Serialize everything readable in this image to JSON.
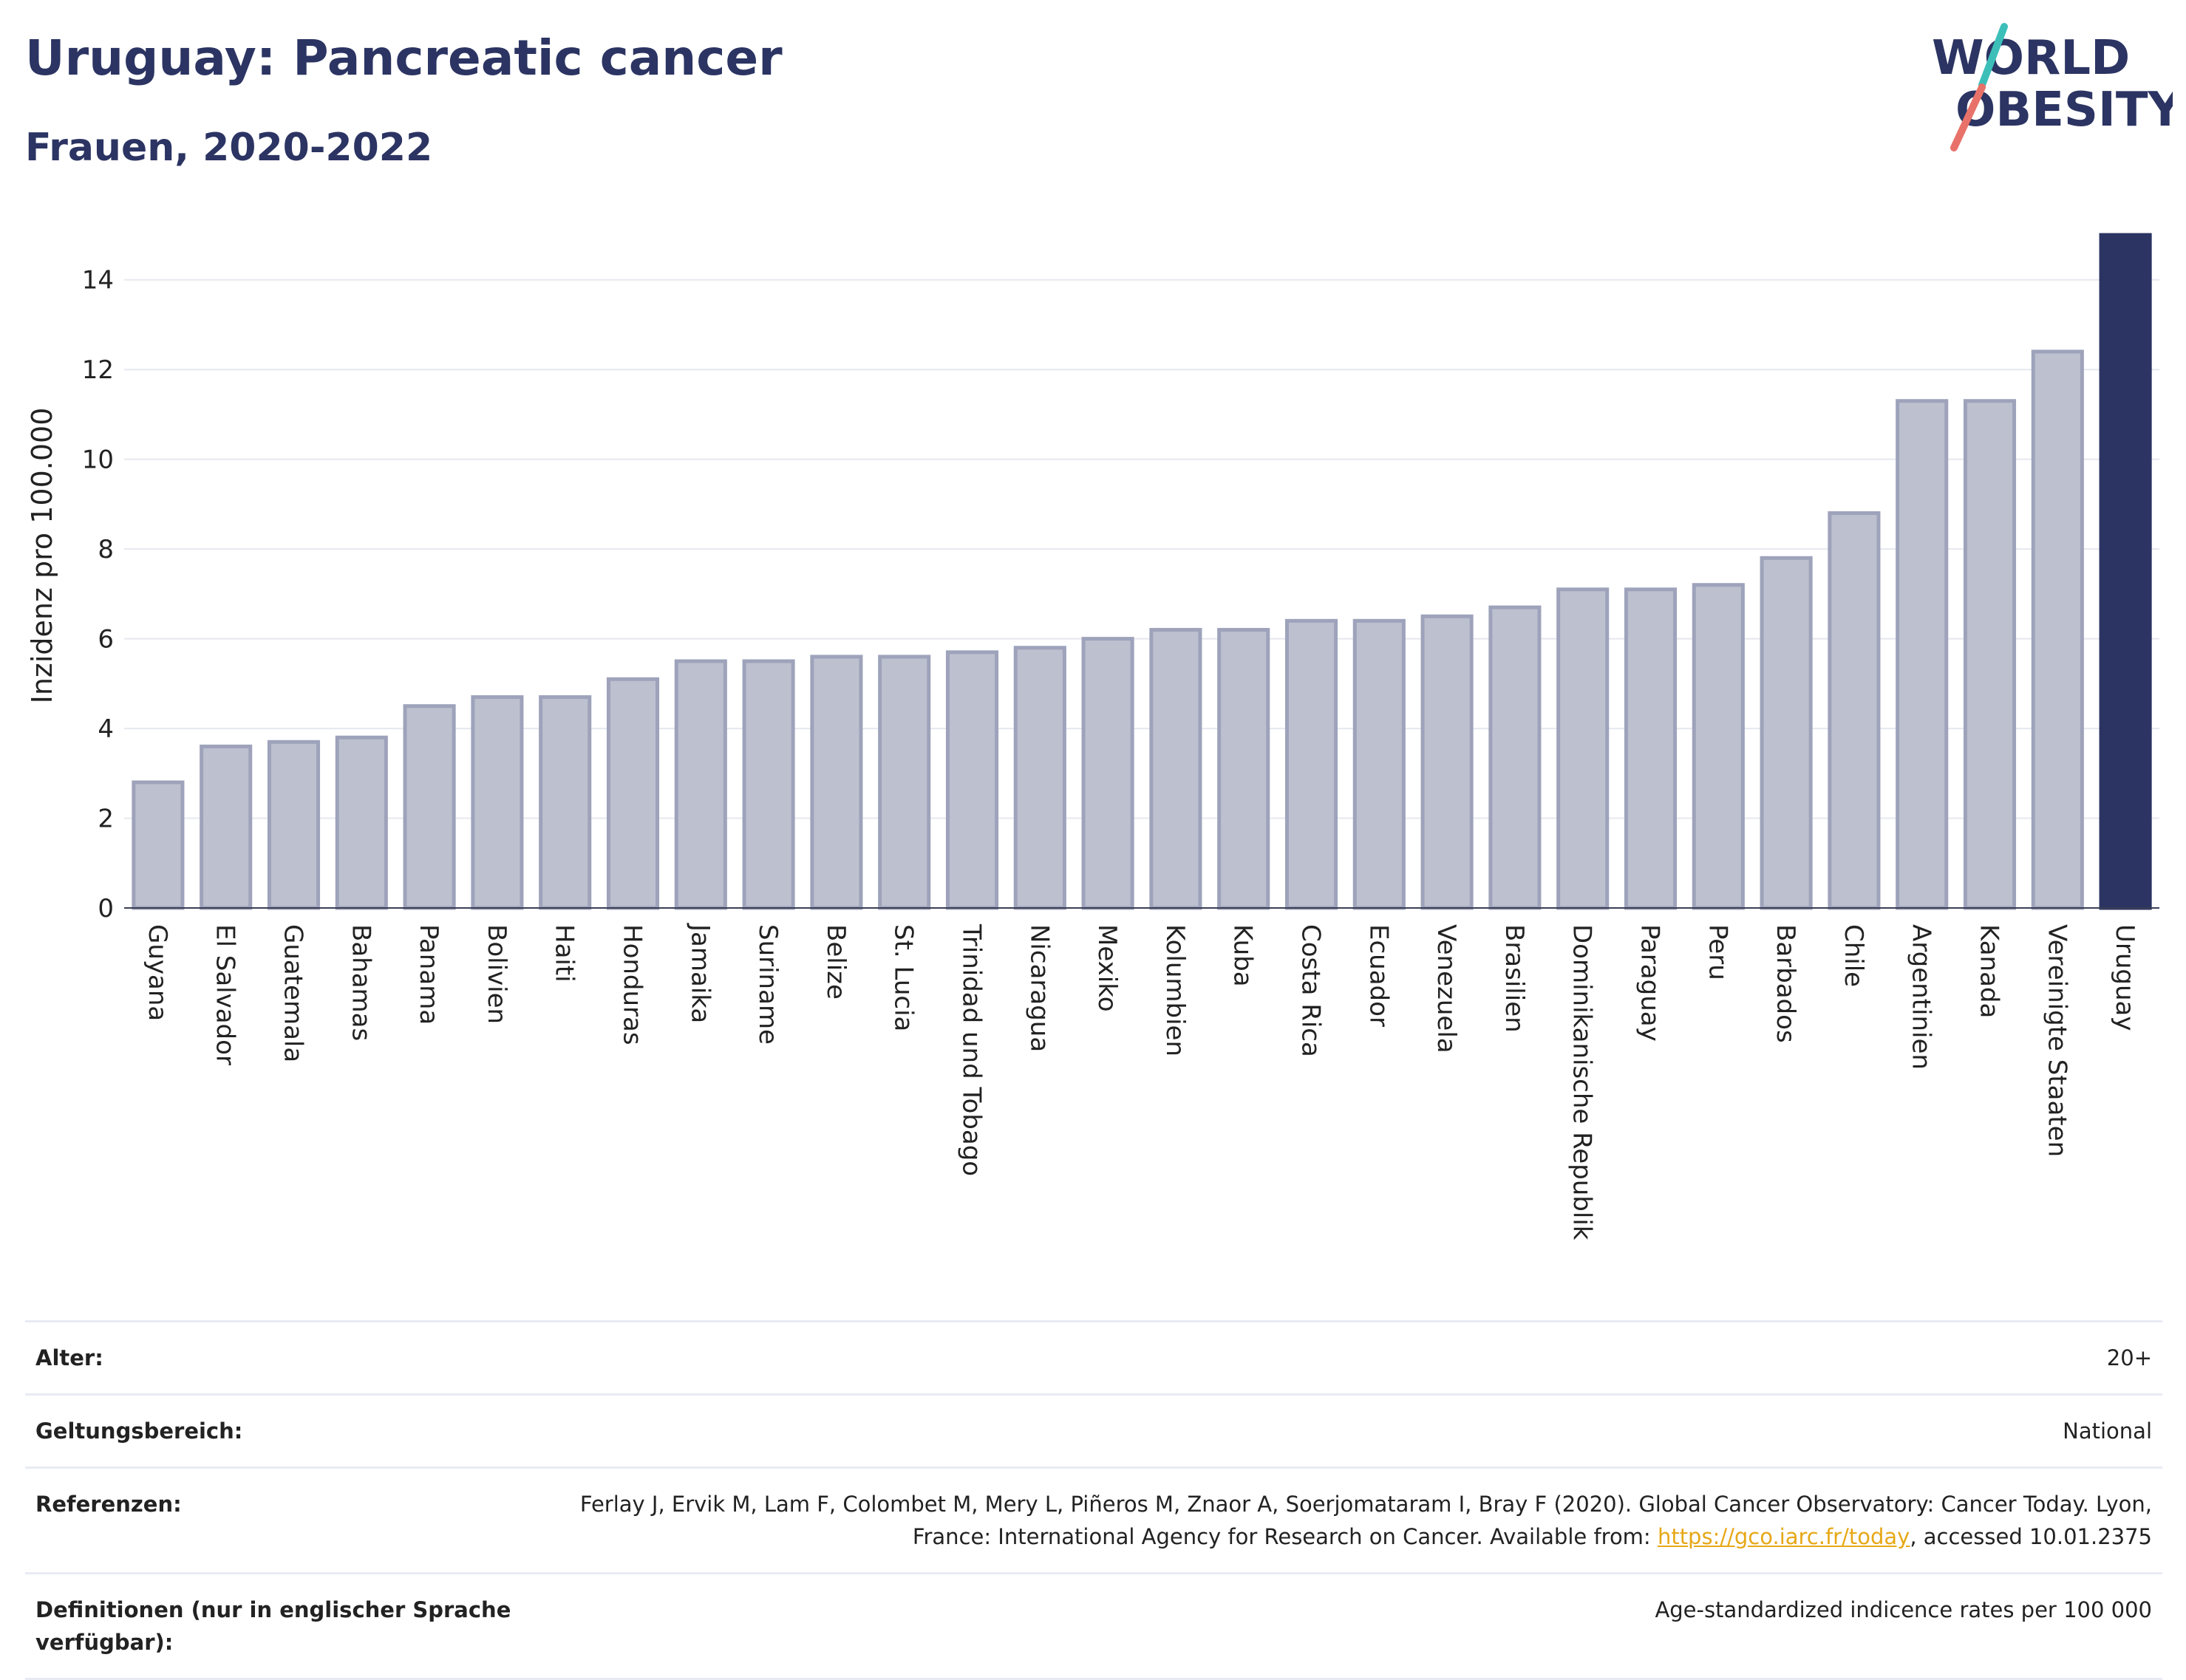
{
  "title": "Uruguay: Pancreatic cancer",
  "subtitle": "Frauen, 2020-2022",
  "logo": {
    "line1": "WORLD",
    "line2": "OBESITY"
  },
  "colors": {
    "accent": "#2b3462",
    "bar": "#bdc0cf",
    "bar_border": "#9ea3bb",
    "highlight": "#2b3462",
    "logo_teal": "#3dbfb9",
    "logo_coral": "#e8726a",
    "link": "#e6a817"
  },
  "chart_data": {
    "type": "bar",
    "ylabel": "Inzidenz pro 100.000",
    "ylim": [
      0,
      15
    ],
    "yticks": [
      0,
      2,
      4,
      6,
      8,
      10,
      12,
      14
    ],
    "grid": true,
    "highlight": "Uruguay",
    "categories": [
      "Guyana",
      "El Salvador",
      "Guatemala",
      "Bahamas",
      "Panama",
      "Bolivien",
      "Haiti",
      "Honduras",
      "Jamaika",
      "Suriname",
      "Belize",
      "St. Lucia",
      "Trinidad und Tobago",
      "Nicaragua",
      "Mexiko",
      "Kolumbien",
      "Kuba",
      "Costa Rica",
      "Ecuador",
      "Venezuela",
      "Brasilien",
      "Dominikanische Republik",
      "Paraguay",
      "Peru",
      "Barbados",
      "Chile",
      "Argentinien",
      "Kanada",
      "Vereinigte Staaten",
      "Uruguay"
    ],
    "values": [
      2.8,
      3.6,
      3.7,
      3.8,
      4.5,
      4.7,
      4.7,
      5.1,
      5.5,
      5.5,
      5.6,
      5.6,
      5.7,
      5.8,
      6.0,
      6.2,
      6.2,
      6.4,
      6.4,
      6.5,
      6.7,
      7.1,
      7.1,
      7.2,
      7.8,
      8.8,
      11.3,
      11.3,
      12.4,
      15.0
    ]
  },
  "meta": {
    "age_label": "Alter:",
    "age_value": "20+",
    "scope_label": "Geltungsbereich:",
    "scope_value": "National",
    "refs_label": "Referenzen:",
    "refs_text_1": "Ferlay J, Ervik M, Lam F, Colombet M, Mery L, Piñeros M, Znaor A, Soerjomataram I, Bray F (2020). Global Cancer Observatory: Cancer Today. Lyon, France: International Agency for Research on Cancer. Available from: ",
    "refs_link": "https://gco.iarc.fr/today",
    "refs_text_2": ", accessed 10.01.2375",
    "defs_label": "Definitionen (nur in englischer Sprache verfügbar):",
    "defs_value": "Age-standardized indicence rates per 100 000"
  }
}
